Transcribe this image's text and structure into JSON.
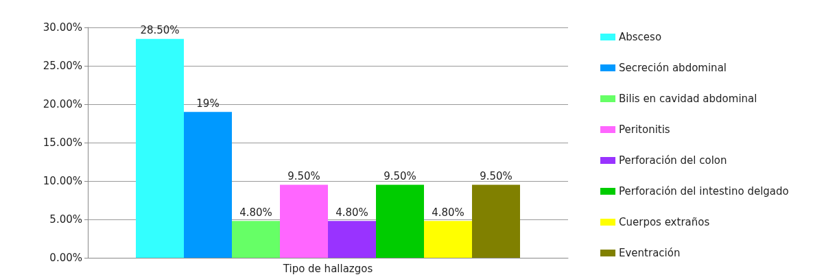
{
  "chart_data": {
    "type": "bar",
    "categories": [
      "Tipo de hallazgos"
    ],
    "series": [
      {
        "name": "Absceso",
        "color": "#33ffff",
        "values": [
          28.5
        ],
        "value_labels": [
          "28.50%"
        ]
      },
      {
        "name": "Secreción abdominal",
        "color": "#0099ff",
        "values": [
          19
        ],
        "value_labels": [
          "19%"
        ]
      },
      {
        "name": "Bilis en cavidad abdominal",
        "color": "#66ff66",
        "values": [
          4.8
        ],
        "value_labels": [
          "4.80%"
        ]
      },
      {
        "name": "Peritonitis",
        "color": "#ff66ff",
        "values": [
          9.5
        ],
        "value_labels": [
          "9.50%"
        ]
      },
      {
        "name": "Perforación del colon",
        "color": "#9933ff",
        "values": [
          4.8
        ],
        "value_labels": [
          "4.80%"
        ]
      },
      {
        "name": "Perforación del intestino delgado",
        "color": "#00cc00",
        "values": [
          9.5
        ],
        "value_labels": [
          "9.50%"
        ]
      },
      {
        "name": "Cuerpos extraños",
        "color": "#ffff00",
        "values": [
          4.8
        ],
        "value_labels": [
          "4.80%"
        ]
      },
      {
        "name": "Eventración",
        "color": "#808000",
        "values": [
          9.5
        ],
        "value_labels": [
          "9.50%"
        ]
      }
    ],
    "ylim": [
      0,
      30
    ],
    "yticks": [
      {
        "value": 0,
        "label": "0.00%"
      },
      {
        "value": 5,
        "label": "5.00%"
      },
      {
        "value": 10,
        "label": "10.00%"
      },
      {
        "value": 15,
        "label": "15.00%"
      },
      {
        "value": 20,
        "label": "20.00%"
      },
      {
        "value": 25,
        "label": "25.00%"
      },
      {
        "value": 30,
        "label": "30.00%"
      }
    ],
    "grid": "y",
    "legend": "right"
  }
}
